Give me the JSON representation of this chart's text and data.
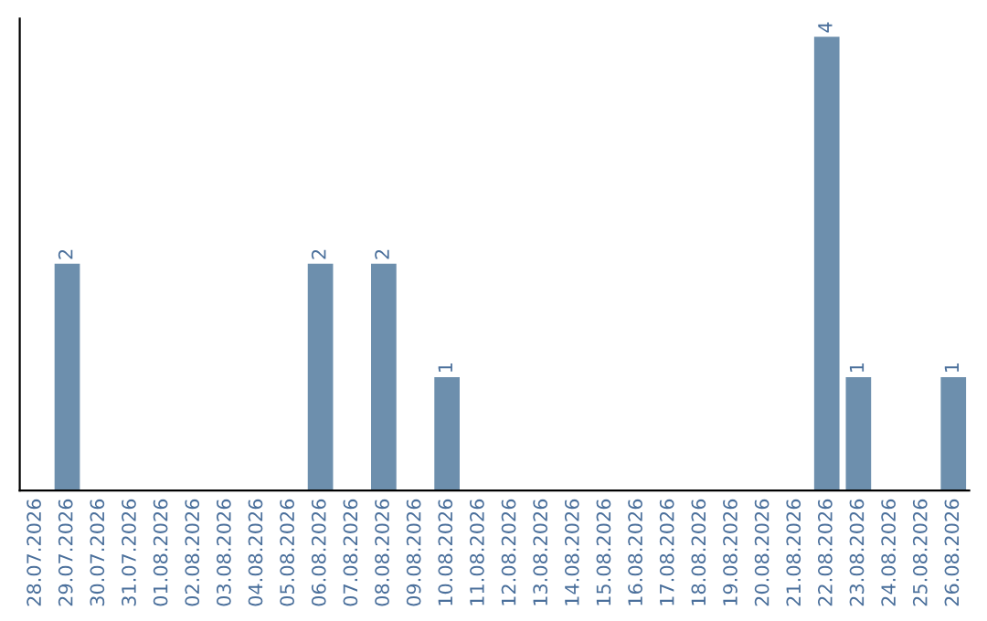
{
  "chart_data": {
    "type": "bar",
    "categories": [
      "28.07.2026",
      "29.07.2026",
      "30.07.2026",
      "31.07.2026",
      "01.08.2026",
      "02.08.2026",
      "03.08.2026",
      "04.08.2026",
      "05.08.2026",
      "06.08.2026",
      "07.08.2026",
      "08.08.2026",
      "09.08.2026",
      "10.08.2026",
      "11.08.2026",
      "12.08.2026",
      "13.08.2026",
      "14.08.2026",
      "15.08.2026",
      "16.08.2026",
      "17.08.2026",
      "18.08.2026",
      "19.08.2026",
      "20.08.2026",
      "21.08.2026",
      "22.08.2026",
      "23.08.2026",
      "24.08.2026",
      "25.08.2026",
      "26.08.2026"
    ],
    "values": [
      0,
      2,
      0,
      0,
      0,
      0,
      0,
      0,
      0,
      2,
      0,
      2,
      0,
      1,
      0,
      0,
      0,
      0,
      0,
      0,
      0,
      0,
      0,
      0,
      0,
      4,
      1,
      0,
      0,
      1
    ],
    "value_labels": [
      null,
      "2",
      null,
      null,
      null,
      null,
      null,
      null,
      null,
      "2",
      null,
      "2",
      null,
      "1",
      null,
      null,
      null,
      null,
      null,
      null,
      null,
      null,
      null,
      null,
      null,
      "4",
      "1",
      null,
      null,
      "1"
    ],
    "color": "#6d8fad",
    "ylim": [
      0,
      4.16
    ],
    "tick_labels": "x",
    "grid": false,
    "legend": false
  }
}
